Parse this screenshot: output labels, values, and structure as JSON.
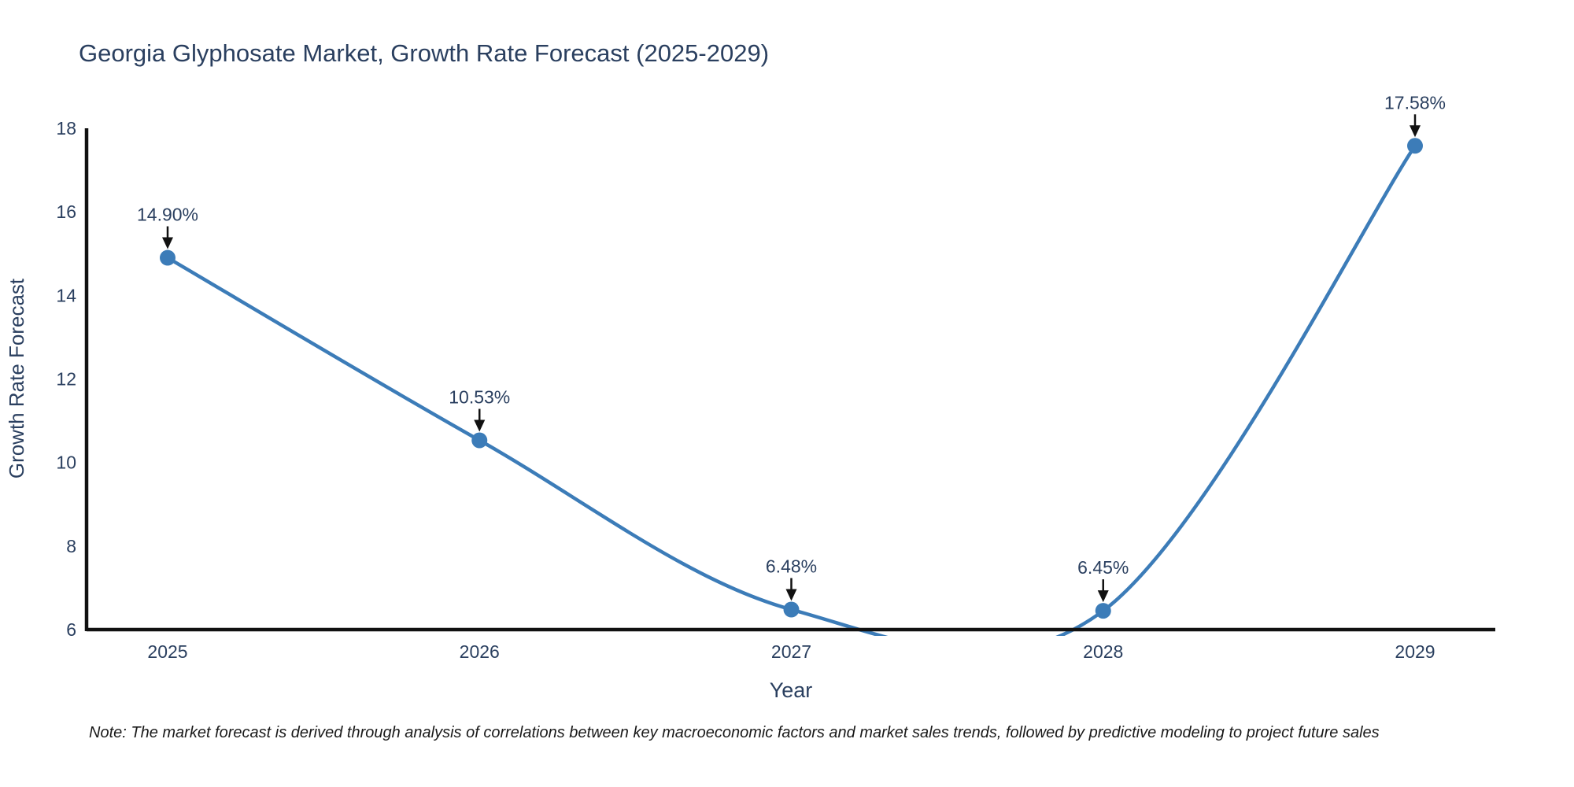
{
  "chart_data": {
    "type": "line",
    "title": "Georgia Glyphosate Market, Growth Rate Forecast (2025-2029)",
    "xlabel": "Year",
    "ylabel": "Growth Rate Forecast",
    "categories": [
      "2025",
      "2026",
      "2027",
      "2028",
      "2029"
    ],
    "values": [
      14.9,
      10.53,
      6.48,
      6.45,
      17.58
    ],
    "point_labels": [
      "14.90%",
      "10.53%",
      "6.48%",
      "6.45%",
      "17.58%"
    ],
    "ylim": [
      6,
      18
    ],
    "ytick_step": 2,
    "yticks": [
      6,
      8,
      10,
      12,
      14,
      16,
      18
    ],
    "line_shape": "spline",
    "markers": true,
    "grid": false,
    "legend": false,
    "annotation_note": "Note: The market forecast is derived through analysis of correlations between key macroeconomic factors and market sales trends, followed by predictive modeling to project future sales",
    "colors": {
      "line": "#3C7CB8",
      "marker": "#3C7CB8",
      "text": "#2A3F5F",
      "axis": "#111111",
      "annotation_arrow": "#111111",
      "note_text": "#1A1A1A",
      "background": "#FFFFFF"
    }
  }
}
